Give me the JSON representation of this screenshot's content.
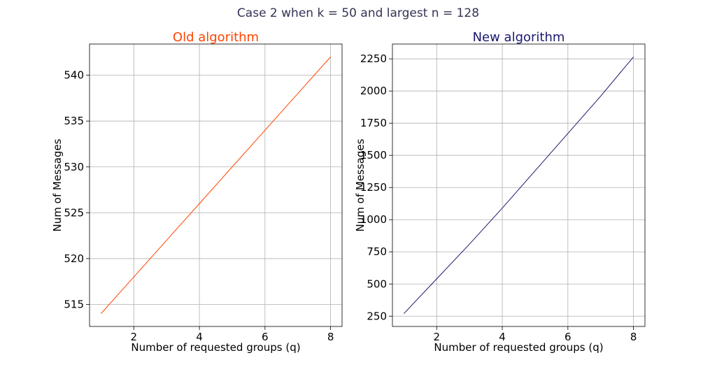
{
  "suptitle": "Case 2 when k = 50 and largest n = 128",
  "suptitle_color": "#333355",
  "chart_data": [
    {
      "type": "line",
      "title": "Old algorithm",
      "title_color": "#ff4500",
      "line_color": "#ff4500",
      "xlabel": "Number of requested groups (q)",
      "ylabel": "Num of Messages",
      "xlim": [
        0.65,
        8.35
      ],
      "ylim": [
        512.6,
        543.4
      ],
      "xticks": [
        2,
        4,
        6,
        8
      ],
      "xtick_labels": [
        "2",
        "4",
        "6",
        "8"
      ],
      "yticks": [
        515,
        520,
        525,
        530,
        535,
        540
      ],
      "ytick_labels": [
        "515",
        "520",
        "525",
        "530",
        "535",
        "540"
      ],
      "grid": true,
      "x": [
        1,
        2,
        3,
        4,
        5,
        6,
        7,
        8
      ],
      "y": [
        514,
        518,
        522,
        526,
        530,
        534,
        538,
        542
      ]
    },
    {
      "type": "line",
      "title": "New algorithm",
      "title_color": "#191970",
      "line_color": "#191970",
      "xlabel": "Number of requested groups (q)",
      "ylabel": "Num of Messages",
      "xlim": [
        0.65,
        8.35
      ],
      "ylim": [
        170,
        2365
      ],
      "xticks": [
        2,
        4,
        6,
        8
      ],
      "xtick_labels": [
        "2",
        "4",
        "6",
        "8"
      ],
      "yticks": [
        250,
        500,
        750,
        1000,
        1250,
        1500,
        1750,
        2000,
        2250
      ],
      "ytick_labels": [
        "250",
        "500",
        "750",
        "1000",
        "1250",
        "1500",
        "1750",
        "2000",
        "2250"
      ],
      "grid": true,
      "x": [
        1,
        2,
        3,
        4,
        5,
        6,
        7,
        8
      ],
      "y": [
        270,
        540,
        810,
        1090,
        1380,
        1670,
        1960,
        2265
      ]
    }
  ]
}
